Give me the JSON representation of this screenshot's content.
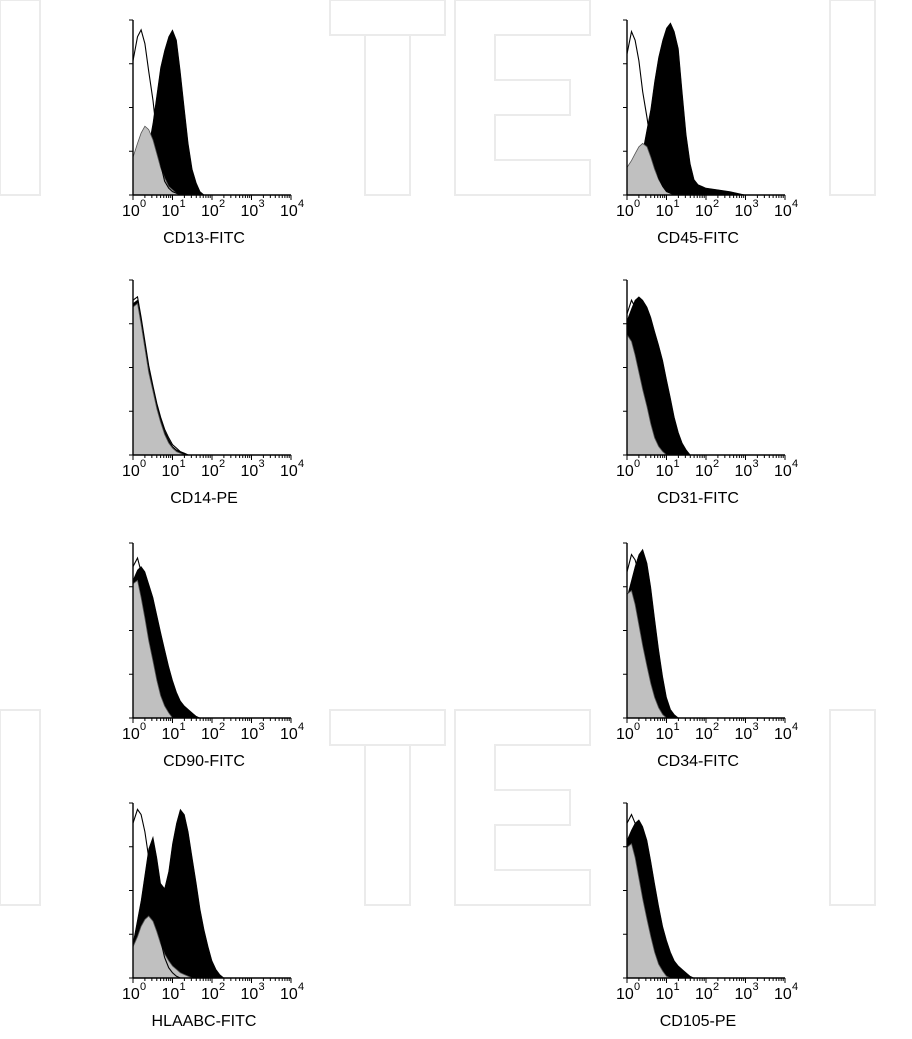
{
  "colors": {
    "marker_fill": "#000000",
    "isotype_fill": "#c0c0c0",
    "control_line": "#000000",
    "watermark": "#ebebeb"
  },
  "chart_data": [
    {
      "type": "area",
      "panel": "CD13-FITC",
      "xlabel": "CD13-FITC",
      "x_scale": "log",
      "xlim": [
        1,
        10000
      ],
      "xticks": [
        "10^0",
        "10^1",
        "10^2",
        "10^3",
        "10^4"
      ],
      "series": [
        {
          "key": "control",
          "x": [
            1,
            1.3,
            1.6,
            2,
            2.5,
            3.2,
            4,
            5,
            6.3,
            8,
            10,
            12.6,
            15.8,
            20
          ],
          "values": [
            0.78,
            0.92,
            0.96,
            0.88,
            0.72,
            0.55,
            0.35,
            0.18,
            0.08,
            0.04,
            0.02,
            0.01,
            0,
            0
          ]
        },
        {
          "key": "marker",
          "x": [
            1,
            1.6,
            2.5,
            3.2,
            4,
            5,
            6.3,
            8,
            10,
            12.6,
            15.8,
            20,
            25,
            31.6,
            40,
            50,
            63
          ],
          "values": [
            0.05,
            0.14,
            0.28,
            0.42,
            0.58,
            0.74,
            0.84,
            0.92,
            0.96,
            0.9,
            0.72,
            0.5,
            0.3,
            0.15,
            0.07,
            0.02,
            0
          ]
        },
        {
          "key": "isotype",
          "x": [
            1,
            1.3,
            1.6,
            2,
            2.5,
            3.2,
            4,
            5,
            6.3,
            8,
            10,
            12.6,
            15.8,
            20
          ],
          "values": [
            0.22,
            0.3,
            0.36,
            0.4,
            0.38,
            0.32,
            0.24,
            0.16,
            0.1,
            0.05,
            0.03,
            0.01,
            0,
            0
          ]
        }
      ]
    },
    {
      "type": "area",
      "panel": "CD45-FITC",
      "xlabel": "CD45-FITC",
      "x_scale": "log",
      "xlim": [
        1,
        10000
      ],
      "xticks": [
        "10^0",
        "10^1",
        "10^2",
        "10^3",
        "10^4"
      ],
      "series": [
        {
          "key": "control",
          "x": [
            1,
            1.3,
            1.6,
            2,
            2.5,
            3.2,
            4,
            5,
            6.3,
            8,
            10,
            12.6,
            15.8,
            20
          ],
          "values": [
            0.82,
            0.95,
            0.9,
            0.78,
            0.6,
            0.45,
            0.3,
            0.18,
            0.1,
            0.05,
            0.02,
            0.01,
            0,
            0
          ]
        },
        {
          "key": "marker",
          "x": [
            1,
            1.6,
            2.5,
            4,
            5,
            6.3,
            8,
            10,
            12.6,
            15.8,
            20,
            25,
            31.6,
            40,
            50,
            63,
            80,
            100,
            200,
            400,
            1000
          ],
          "values": [
            0.05,
            0.12,
            0.25,
            0.5,
            0.66,
            0.8,
            0.9,
            0.97,
            1.0,
            0.95,
            0.85,
            0.6,
            0.35,
            0.18,
            0.09,
            0.06,
            0.05,
            0.04,
            0.03,
            0.02,
            0
          ]
        },
        {
          "key": "isotype",
          "x": [
            1,
            1.3,
            1.6,
            2,
            2.5,
            3.2,
            4,
            5,
            6.3,
            8,
            10,
            12.6,
            15.8
          ],
          "values": [
            0.16,
            0.2,
            0.24,
            0.28,
            0.3,
            0.28,
            0.22,
            0.15,
            0.09,
            0.05,
            0.02,
            0.01,
            0
          ]
        }
      ]
    },
    {
      "type": "area",
      "panel": "CD14-PE",
      "xlabel": "CD14-PE",
      "x_scale": "log",
      "xlim": [
        1,
        10000
      ],
      "xticks": [
        "10^0",
        "10^1",
        "10^2",
        "10^3",
        "10^4"
      ],
      "series": [
        {
          "key": "control",
          "x": [
            1,
            1.3,
            1.6,
            2,
            2.5,
            3.2,
            4,
            5,
            6.3,
            8,
            10,
            12.6,
            15.8,
            20,
            25
          ],
          "values": [
            0.9,
            0.92,
            0.8,
            0.66,
            0.52,
            0.4,
            0.3,
            0.22,
            0.15,
            0.1,
            0.06,
            0.04,
            0.02,
            0.01,
            0
          ]
        },
        {
          "key": "marker",
          "x": [
            1,
            1.3,
            1.6,
            2,
            2.5,
            3.2,
            4,
            5,
            6.3,
            8,
            10,
            12.6,
            15.8,
            20,
            25
          ],
          "values": [
            0.88,
            0.9,
            0.78,
            0.64,
            0.5,
            0.39,
            0.29,
            0.21,
            0.14,
            0.09,
            0.05,
            0.03,
            0.02,
            0.01,
            0
          ]
        },
        {
          "key": "isotype",
          "x": [
            1,
            1.3,
            1.6,
            2,
            2.5,
            3.2,
            4,
            5,
            6.3,
            8,
            10,
            12.6,
            15.8,
            20
          ],
          "values": [
            0.86,
            0.88,
            0.76,
            0.62,
            0.48,
            0.37,
            0.27,
            0.19,
            0.12,
            0.07,
            0.04,
            0.02,
            0.01,
            0
          ]
        }
      ]
    },
    {
      "type": "area",
      "panel": "CD31-FITC",
      "xlabel": "CD31-FITC",
      "x_scale": "log",
      "xlim": [
        1,
        10000
      ],
      "xticks": [
        "10^0",
        "10^1",
        "10^2",
        "10^3",
        "10^4"
      ],
      "series": [
        {
          "key": "control",
          "x": [
            1,
            1.3,
            1.6,
            2,
            2.5,
            3.2,
            4,
            5,
            6.3,
            8,
            10,
            12.6,
            15.8,
            20
          ],
          "values": [
            0.82,
            0.9,
            0.86,
            0.75,
            0.6,
            0.46,
            0.33,
            0.22,
            0.14,
            0.08,
            0.04,
            0.02,
            0.01,
            0
          ]
        },
        {
          "key": "marker",
          "x": [
            1,
            1.3,
            1.6,
            2,
            2.5,
            3.2,
            4,
            5,
            6.3,
            8,
            10,
            12.6,
            15.8,
            20,
            25,
            31.6,
            40
          ],
          "values": [
            0.78,
            0.85,
            0.9,
            0.92,
            0.9,
            0.86,
            0.8,
            0.72,
            0.64,
            0.55,
            0.44,
            0.33,
            0.22,
            0.13,
            0.07,
            0.03,
            0
          ]
        },
        {
          "key": "isotype",
          "x": [
            1,
            1.3,
            1.6,
            2,
            2.5,
            3.2,
            4,
            5,
            6.3,
            8,
            10
          ],
          "values": [
            0.7,
            0.66,
            0.58,
            0.48,
            0.38,
            0.28,
            0.18,
            0.1,
            0.05,
            0.02,
            0
          ]
        }
      ]
    },
    {
      "type": "area",
      "panel": "CD90-FITC",
      "xlabel": "CD90-FITC",
      "x_scale": "log",
      "xlim": [
        1,
        10000
      ],
      "xticks": [
        "10^0",
        "10^1",
        "10^2",
        "10^3",
        "10^4"
      ],
      "series": [
        {
          "key": "control",
          "x": [
            1,
            1.3,
            1.6,
            2,
            2.5,
            3.2,
            4,
            5,
            6.3,
            8,
            10,
            12.6,
            15.8,
            20
          ],
          "values": [
            0.88,
            0.93,
            0.85,
            0.72,
            0.58,
            0.45,
            0.34,
            0.24,
            0.16,
            0.1,
            0.06,
            0.03,
            0.01,
            0
          ]
        },
        {
          "key": "marker",
          "x": [
            1,
            1.3,
            1.6,
            2,
            2.5,
            3.2,
            4,
            5,
            6.3,
            8,
            10,
            12.6,
            15.8,
            20,
            25,
            31.6,
            40,
            50
          ],
          "values": [
            0.8,
            0.86,
            0.88,
            0.85,
            0.78,
            0.7,
            0.6,
            0.5,
            0.4,
            0.3,
            0.22,
            0.15,
            0.1,
            0.07,
            0.05,
            0.03,
            0.01,
            0
          ]
        },
        {
          "key": "isotype",
          "x": [
            1,
            1.3,
            1.6,
            2,
            2.5,
            3.2,
            4,
            5,
            6.3,
            8,
            10
          ],
          "values": [
            0.78,
            0.8,
            0.7,
            0.58,
            0.45,
            0.33,
            0.22,
            0.13,
            0.07,
            0.03,
            0
          ]
        }
      ]
    },
    {
      "type": "area",
      "panel": "CD34-FITC",
      "xlabel": "CD34-FITC",
      "x_scale": "log",
      "xlim": [
        1,
        10000
      ],
      "xticks": [
        "10^0",
        "10^1",
        "10^2",
        "10^3",
        "10^4"
      ],
      "series": [
        {
          "key": "control",
          "x": [
            1,
            1.3,
            1.6,
            2,
            2.5,
            3.2,
            4,
            5,
            6.3,
            8,
            10,
            12.6,
            15.8
          ],
          "values": [
            0.85,
            0.95,
            0.92,
            0.84,
            0.7,
            0.54,
            0.4,
            0.28,
            0.18,
            0.1,
            0.05,
            0.02,
            0
          ]
        },
        {
          "key": "marker",
          "x": [
            1,
            1.3,
            1.6,
            2,
            2.5,
            3.2,
            4,
            5,
            6.3,
            8,
            10,
            12.6,
            15.8,
            20
          ],
          "values": [
            0.7,
            0.8,
            0.88,
            0.95,
            0.98,
            0.9,
            0.76,
            0.58,
            0.4,
            0.24,
            0.12,
            0.05,
            0.02,
            0
          ]
        },
        {
          "key": "isotype",
          "x": [
            1,
            1.3,
            1.6,
            2,
            2.5,
            3.2,
            4,
            5,
            6.3,
            8,
            10
          ],
          "values": [
            0.72,
            0.74,
            0.66,
            0.54,
            0.42,
            0.3,
            0.2,
            0.12,
            0.06,
            0.02,
            0
          ]
        }
      ]
    },
    {
      "type": "area",
      "panel": "HLAABC-FITC",
      "xlabel": "HLAABC-FITC",
      "x_scale": "log",
      "xlim": [
        1,
        10000
      ],
      "xticks": [
        "10^0",
        "10^1",
        "10^2",
        "10^3",
        "10^4"
      ],
      "series": [
        {
          "key": "control",
          "x": [
            1,
            1.3,
            1.6,
            2,
            2.5,
            3.2,
            4,
            5,
            6.3,
            8,
            10,
            12.6,
            15.8,
            20
          ],
          "values": [
            0.9,
            0.98,
            0.95,
            0.85,
            0.7,
            0.52,
            0.36,
            0.22,
            0.12,
            0.06,
            0.03,
            0.01,
            0,
            0
          ]
        },
        {
          "key": "marker",
          "x": [
            1,
            1.6,
            2.5,
            3.2,
            4,
            5,
            6.3,
            8,
            10,
            12.6,
            15.8,
            20,
            25,
            31.6,
            40,
            50,
            63,
            80,
            100,
            126,
            158,
            200
          ],
          "values": [
            0.2,
            0.45,
            0.75,
            0.82,
            0.7,
            0.55,
            0.52,
            0.62,
            0.78,
            0.9,
            0.98,
            0.95,
            0.85,
            0.7,
            0.55,
            0.4,
            0.28,
            0.18,
            0.1,
            0.05,
            0.02,
            0
          ]
        },
        {
          "key": "isotype",
          "x": [
            1,
            1.3,
            1.6,
            2,
            2.5,
            3.2,
            4,
            5,
            6.3,
            8,
            10,
            12.6,
            15.8,
            20,
            25,
            31.6
          ],
          "values": [
            0.18,
            0.24,
            0.3,
            0.34,
            0.36,
            0.33,
            0.27,
            0.2,
            0.14,
            0.1,
            0.07,
            0.05,
            0.03,
            0.02,
            0.01,
            0
          ]
        }
      ]
    },
    {
      "type": "area",
      "panel": "CD105-PE",
      "xlabel": "CD105-PE",
      "x_scale": "log",
      "xlim": [
        1,
        10000
      ],
      "xticks": [
        "10^0",
        "10^1",
        "10^2",
        "10^3",
        "10^4"
      ],
      "series": [
        {
          "key": "control",
          "x": [
            1,
            1.3,
            1.6,
            2,
            2.5,
            3.2,
            4,
            5,
            6.3,
            8,
            10,
            12.6,
            15.8,
            20
          ],
          "values": [
            0.9,
            0.95,
            0.9,
            0.8,
            0.66,
            0.52,
            0.4,
            0.3,
            0.2,
            0.13,
            0.08,
            0.04,
            0.02,
            0
          ]
        },
        {
          "key": "marker",
          "x": [
            1,
            1.3,
            1.6,
            2,
            2.5,
            3.2,
            4,
            5,
            6.3,
            8,
            10,
            12.6,
            15.8,
            20,
            25,
            31.6,
            40,
            50
          ],
          "values": [
            0.8,
            0.86,
            0.9,
            0.92,
            0.88,
            0.8,
            0.68,
            0.55,
            0.42,
            0.3,
            0.22,
            0.15,
            0.1,
            0.07,
            0.05,
            0.03,
            0.01,
            0
          ]
        },
        {
          "key": "isotype",
          "x": [
            1,
            1.3,
            1.6,
            2,
            2.5,
            3.2,
            4,
            5,
            6.3,
            8,
            10,
            12.6
          ],
          "values": [
            0.76,
            0.78,
            0.7,
            0.58,
            0.46,
            0.34,
            0.24,
            0.15,
            0.08,
            0.04,
            0.01,
            0
          ]
        }
      ]
    }
  ]
}
